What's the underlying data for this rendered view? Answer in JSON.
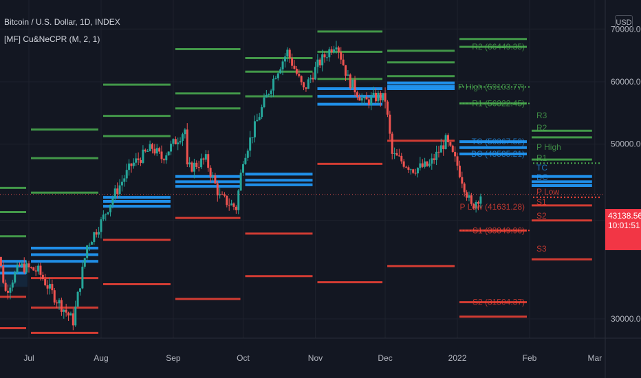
{
  "header": {
    "symbol": "Bitcoin / U.S. Dollar, 1D, INDEX",
    "indicator": "[MF] Cu&NeCPR (M, 2, 1)"
  },
  "currency_button": "USD",
  "last_price": {
    "value": "43138.56",
    "countdown": "10:01:51"
  },
  "colors": {
    "background": "#131722",
    "grid": "#1e222d",
    "up": "#26a69a",
    "down": "#ef5350",
    "resistance": "#4caf50",
    "support": "#f44336",
    "cpr": "#2196f3",
    "label_text": "#7c7f89"
  },
  "chart_data": {
    "type": "candlestick",
    "x_labels": [
      "Jul",
      "Aug",
      "Sep",
      "Oct",
      "Nov",
      "Dec",
      "2022",
      "Feb",
      "Mar"
    ],
    "y_ticks": [
      "30000.00",
      "40000.00",
      "50000.00",
      "60000.00",
      "70000.00"
    ],
    "ylim": [
      27500,
      72000
    ],
    "scale": "log",
    "last_price": 43138.56,
    "grid": true,
    "close_path": [
      [
        "2021-06-15",
        40000
      ],
      [
        "2021-06-21",
        32500
      ],
      [
        "2021-06-27",
        35000
      ],
      [
        "2021-07-05",
        34500
      ],
      [
        "2021-07-12",
        32000
      ],
      [
        "2021-07-20",
        29800
      ],
      [
        "2021-07-26",
        37200
      ],
      [
        "2021-08-01",
        39800
      ],
      [
        "2021-08-06",
        42800
      ],
      [
        "2021-08-14",
        47000
      ],
      [
        "2021-08-23",
        49500
      ],
      [
        "2021-08-27",
        48000
      ],
      [
        "2021-09-06",
        52200
      ],
      [
        "2021-09-07",
        46500
      ],
      [
        "2021-09-15",
        47800
      ],
      [
        "2021-09-21",
        42800
      ],
      [
        "2021-09-28",
        41500
      ],
      [
        "2021-10-01",
        48000
      ],
      [
        "2021-10-08",
        54500
      ],
      [
        "2021-10-15",
        61500
      ],
      [
        "2021-10-20",
        65500
      ],
      [
        "2021-10-27",
        58500
      ],
      [
        "2021-11-02",
        63000
      ],
      [
        "2021-11-10",
        67500
      ],
      [
        "2021-11-15",
        60500
      ],
      [
        "2021-11-22",
        56500
      ],
      [
        "2021-11-28",
        57500
      ],
      [
        "2021-12-01",
        57000
      ],
      [
        "2021-12-04",
        48500
      ],
      [
        "2021-12-13",
        46500
      ],
      [
        "2021-12-20",
        47000
      ],
      [
        "2021-12-27",
        50500
      ],
      [
        "2022-01-01",
        47000
      ],
      [
        "2022-01-07",
        41600
      ],
      [
        "2022-01-11",
        43138.56
      ]
    ],
    "pivot_levels": [
      {
        "month": "2021-06",
        "R3": 44000,
        "R2": 41000,
        "R1": 38200,
        "TC": 35500,
        "P": 35000,
        "BC": 34300,
        "S1": 32000,
        "S2": 29200
      },
      {
        "month": "2021-07",
        "R3": 52200,
        "R2": 48000,
        "R1": 43400,
        "TC": 36900,
        "P": 36200,
        "BC": 35500,
        "S1": 33800,
        "S2": 31000,
        "S3": 28800
      },
      {
        "month": "2021-08",
        "R3": 59500,
        "R2": 54300,
        "R1": 51200,
        "TC": 42800,
        "P": 42300,
        "BC": 41700,
        "S1": 37800,
        "S2": 33200
      },
      {
        "month": "2021-09",
        "R3": 66000,
        "R2": 58000,
        "R1": 55500,
        "TC": 45500,
        "P": 44800,
        "BC": 44200,
        "S1": 40300,
        "S2": 31800
      },
      {
        "month": "2021-10",
        "R3": 64300,
        "R2": 61800,
        "R1": 57500,
        "TC": 45800,
        "P": 45000,
        "BC": 44400,
        "S1": 38500,
        "S2": 34000
      },
      {
        "month": "2021-11",
        "R3": 69500,
        "R2": 65500,
        "R1": 60500,
        "TC": 58800,
        "P": 57500,
        "BC": 56200,
        "S1": 47200,
        "S2": 33400
      },
      {
        "month": "2021-12",
        "R3": 65700,
        "R2": 63500,
        "R1": 61000,
        "TC": 59800,
        "P": 59200,
        "BC": 58800,
        "S1": 50500,
        "S2": 35000
      },
      {
        "month": "2022-01",
        "R3": 68000,
        "R2": 66449.35,
        "R1": 56322.45,
        "TC": 50367.52,
        "P": 49500,
        "BC": 48585.21,
        "S1": 38849.96,
        "S2": 31504.37,
        "S3": 30200
      },
      {
        "month": "2022-02",
        "R3": 52000,
        "R2": 51000,
        "R1": 47800,
        "TC": 45500,
        "P": 44800,
        "BC": 44300,
        "S1": 41800,
        "S2": 40000,
        "S3": 35700
      }
    ],
    "labels_jan_2022": [
      "R2 (66449.35)",
      "P High (59103.77)",
      "R1 (56322.45)",
      "TC (50367.52)",
      "BC (48585.21)",
      "P Low (41631.28)",
      "S1 (38849.96)",
      "S2 (31504.37)"
    ],
    "labels_feb_2022": [
      "R3",
      "R2",
      "P High",
      "R1",
      "TC",
      "BC",
      "P Low",
      "S1",
      "S2",
      "S3"
    ]
  }
}
